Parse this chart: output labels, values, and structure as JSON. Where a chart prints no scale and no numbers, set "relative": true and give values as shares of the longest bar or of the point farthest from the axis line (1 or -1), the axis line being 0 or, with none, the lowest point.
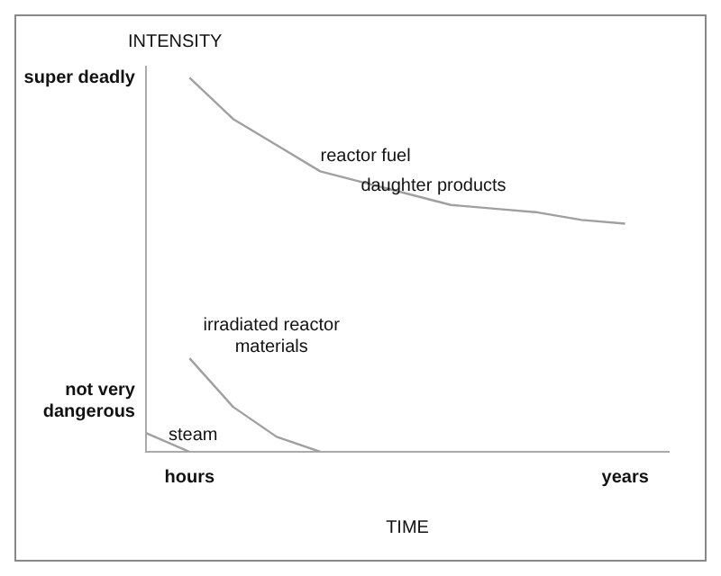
{
  "chart_data": {
    "type": "line",
    "xlabel": "TIME",
    "ylabel": "INTENSITY",
    "relative": true,
    "marker": "none",
    "grid": false,
    "legend": false,
    "categories": [
      null,
      "hours",
      null,
      null,
      null,
      null,
      null,
      null,
      null,
      null,
      null,
      "years",
      null
    ],
    "series": [
      {
        "color": "#a0a0a0",
        "values": [
          null,
          1,
          0.89,
          0.82,
          0.75,
          0.72,
          0.69,
          0.66,
          0.65,
          0.64,
          0.62,
          0.61,
          null
        ]
      },
      {
        "color": "#a0a0a0",
        "values": [
          null,
          0.25,
          0.12,
          0.04,
          0,
          null,
          null,
          null,
          null,
          null,
          null,
          null,
          null
        ]
      },
      {
        "color": "#a0a0a0",
        "values": [
          0.05,
          0,
          null,
          null,
          null,
          null,
          null,
          null,
          null,
          null,
          null,
          null,
          null
        ]
      }
    ],
    "annotations": [
      "super deadly",
      "not very dangerous",
      "reactor fuel",
      "daughter  products",
      "irradiated reactor materials",
      "steam"
    ]
  }
}
